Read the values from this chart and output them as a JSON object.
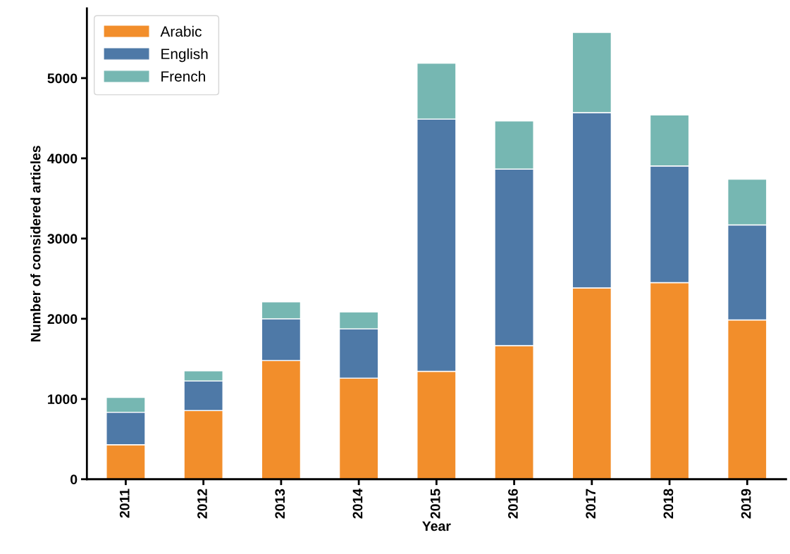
{
  "chart_data": {
    "type": "bar",
    "stacked": true,
    "xlabel": "Year",
    "ylabel": "Number of considered articles",
    "categories": [
      "2011",
      "2012",
      "2013",
      "2014",
      "2015",
      "2016",
      "2017",
      "2018",
      "2019"
    ],
    "series": [
      {
        "name": "Arabic",
        "color": "#f28e2b",
        "values": [
          430,
          855,
          1480,
          1260,
          1345,
          1665,
          2385,
          2450,
          1985
        ]
      },
      {
        "name": "English",
        "color": "#4e79a7",
        "values": [
          405,
          370,
          520,
          615,
          3145,
          2200,
          2185,
          1455,
          1185
        ]
      },
      {
        "name": "French",
        "color": "#76b7b2",
        "values": [
          185,
          125,
          210,
          210,
          695,
          600,
          1000,
          635,
          570
        ]
      }
    ],
    "ylim": [
      0,
      5870
    ],
    "yticks": [
      0,
      1000,
      2000,
      3000,
      4000,
      5000
    ],
    "grid": false,
    "legend": "top left"
  }
}
